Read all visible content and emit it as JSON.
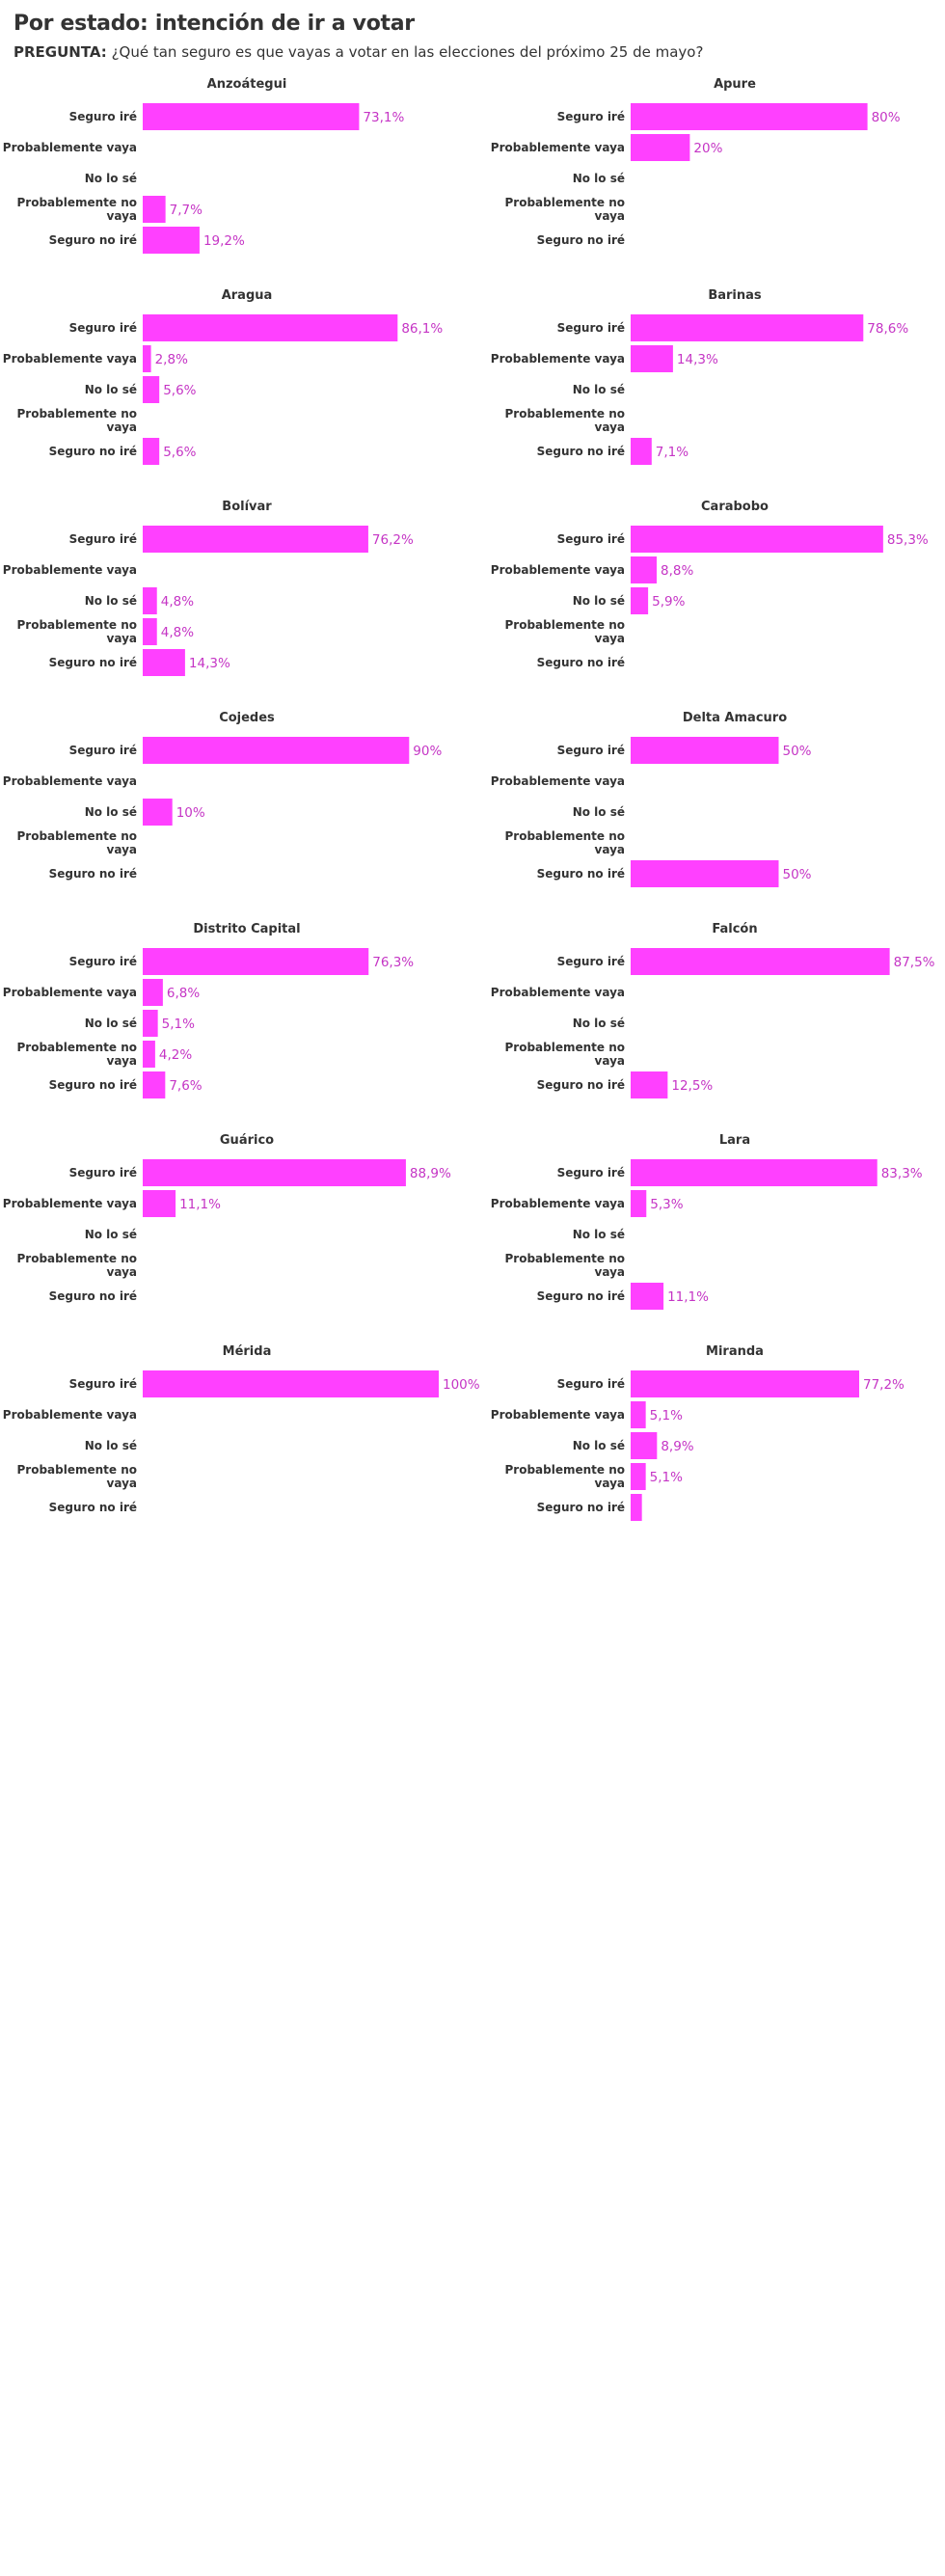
{
  "page": {
    "title": "Por estado: intención de ir a votar",
    "subtitle_prefix": "PREGUNTA:",
    "subtitle": "¿Qué tan seguro es que vayas a votar en las elecciones del próximo 25 de mayo?"
  },
  "colors": {
    "bar": "#ff40ff",
    "value_text": "#c535c5",
    "label_text": "#333333"
  },
  "chart_data": {
    "type": "bar",
    "orientation": "horizontal",
    "small_multiples": true,
    "columns": 2,
    "xlim": [
      0,
      100
    ],
    "value_format": "percent-comma-decimal",
    "categories": [
      "Seguro iré",
      "Probablemente vaya",
      "No lo sé",
      "Probablemente no vaya",
      "Seguro no iré"
    ],
    "panels": [
      {
        "name": "Anzoátegui",
        "values": [
          73.1,
          0,
          0,
          7.7,
          19.2
        ],
        "labels": [
          "73,1%",
          "",
          "",
          "7,7%",
          "19,2%"
        ]
      },
      {
        "name": "Apure",
        "values": [
          80,
          20,
          0,
          0,
          0
        ],
        "labels": [
          "80%",
          "20%",
          "",
          "",
          ""
        ]
      },
      {
        "name": "Aragua",
        "values": [
          86.1,
          2.8,
          5.6,
          0,
          5.6
        ],
        "labels": [
          "86,1%",
          "2,8%",
          "5,6%",
          "",
          "5,6%"
        ]
      },
      {
        "name": "Barinas",
        "values": [
          78.6,
          14.3,
          0,
          0,
          7.1
        ],
        "labels": [
          "78,6%",
          "14,3%",
          "",
          "",
          "7,1%"
        ]
      },
      {
        "name": "Bolívar",
        "values": [
          76.2,
          0,
          4.8,
          4.8,
          14.3
        ],
        "labels": [
          "76,2%",
          "",
          "4,8%",
          "4,8%",
          "14,3%"
        ]
      },
      {
        "name": "Carabobo",
        "values": [
          85.3,
          8.8,
          5.9,
          0,
          0
        ],
        "labels": [
          "85,3%",
          "8,8%",
          "5,9%",
          "",
          ""
        ]
      },
      {
        "name": "Cojedes",
        "values": [
          90,
          0,
          10,
          0,
          0
        ],
        "labels": [
          "90%",
          "",
          "10%",
          "",
          ""
        ]
      },
      {
        "name": "Delta Amacuro",
        "values": [
          50,
          0,
          0,
          0,
          50
        ],
        "labels": [
          "50%",
          "",
          "",
          "",
          "50%"
        ]
      },
      {
        "name": "Distrito Capital",
        "values": [
          76.3,
          6.8,
          5.1,
          4.2,
          7.6
        ],
        "labels": [
          "76,3%",
          "6,8%",
          "5,1%",
          "4,2%",
          "7,6%"
        ]
      },
      {
        "name": "Falcón",
        "values": [
          87.5,
          0,
          0,
          0,
          12.5
        ],
        "labels": [
          "87,5%",
          "",
          "",
          "",
          "12,5%"
        ]
      },
      {
        "name": "Guárico",
        "values": [
          88.9,
          11.1,
          0,
          0,
          0
        ],
        "labels": [
          "88,9%",
          "11,1%",
          "",
          "",
          ""
        ]
      },
      {
        "name": "Lara",
        "values": [
          83.3,
          5.3,
          0,
          0,
          11.1
        ],
        "labels": [
          "83,3%",
          "5,3%",
          "",
          "",
          "11,1%"
        ]
      },
      {
        "name": "Mérida",
        "values": [
          100,
          0,
          0,
          0,
          0
        ],
        "labels": [
          "100%",
          "",
          "",
          "",
          ""
        ]
      },
      {
        "name": "Miranda",
        "values": [
          77.2,
          5.1,
          8.9,
          5.1,
          3.8
        ],
        "labels": [
          "77,2%",
          "5,1%",
          "8,9%",
          "5,1%",
          ""
        ]
      }
    ]
  }
}
